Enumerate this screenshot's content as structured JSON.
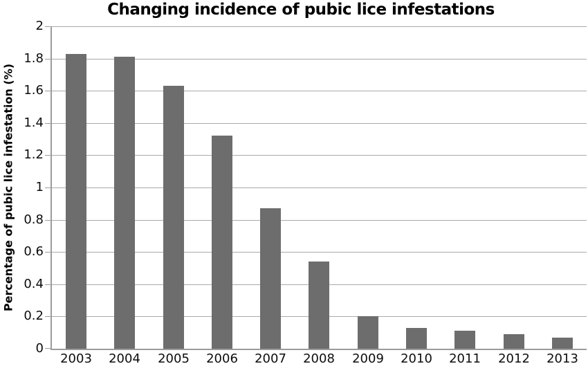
{
  "chart_data": {
    "type": "bar",
    "title": "Changing incidence of pubic lice infestations",
    "xlabel": "",
    "ylabel": "Percentage of pubic lice infestation (%)",
    "categories": [
      "2003",
      "2004",
      "2005",
      "2006",
      "2007",
      "2008",
      "2009",
      "2010",
      "2011",
      "2012",
      "2013"
    ],
    "values": [
      1.83,
      1.81,
      1.63,
      1.32,
      0.87,
      0.54,
      0.2,
      0.13,
      0.11,
      0.09,
      0.07
    ],
    "ylim": [
      0,
      2
    ],
    "ytick_step": 0.2,
    "ytick_labels": [
      "0",
      "0.2",
      "0.4",
      "0.6",
      "0.8",
      "1",
      "1.2",
      "1.4",
      "1.6",
      "1.8",
      "2"
    ],
    "grid": true,
    "legend": false,
    "bar_color": "#6d6d6d",
    "grid_color": "#a9a9a9",
    "axis_color": "#9b9b9b",
    "text_color": "#0d0d0d"
  }
}
